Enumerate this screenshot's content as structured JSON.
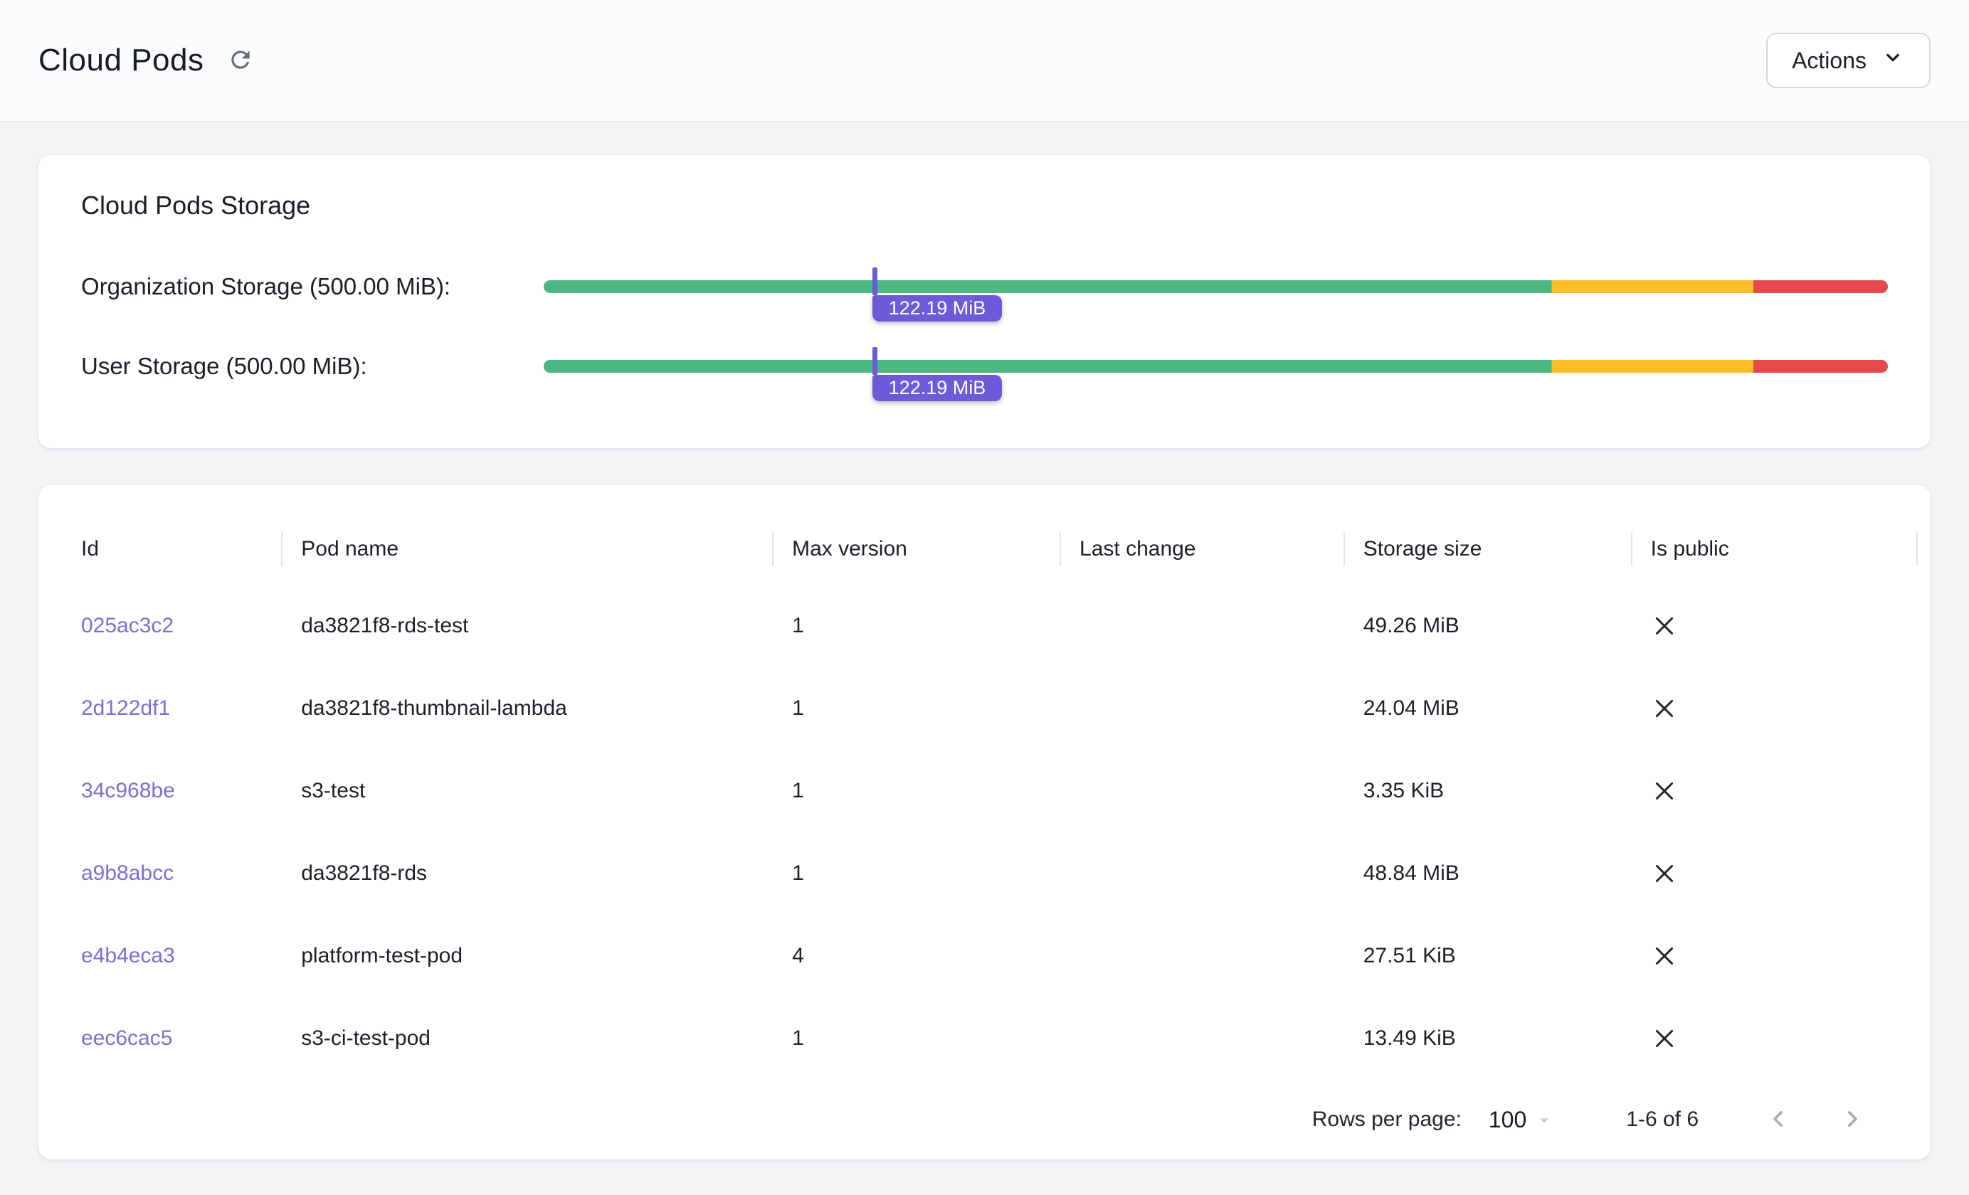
{
  "header": {
    "title": "Cloud Pods",
    "actions_label": "Actions"
  },
  "storage_card": {
    "title": "Cloud Pods Storage",
    "bars": [
      {
        "label": "Organization Storage (500.00 MiB):",
        "marker_label": "122.19 MiB",
        "marker_percent": 24.44
      },
      {
        "label": "User Storage (500.00 MiB):",
        "marker_label": "122.19 MiB",
        "marker_percent": 24.44
      }
    ],
    "thresholds": {
      "green_end_percent": 75,
      "yellow_end_percent": 90
    },
    "colors": {
      "green": "#4cb781",
      "yellow": "#fcbd2a",
      "red": "#e5494d",
      "marker": "#6c5bd9"
    }
  },
  "table": {
    "columns": [
      "Id",
      "Pod name",
      "Max version",
      "Last change",
      "Storage size",
      "Is public"
    ],
    "rows": [
      {
        "id": "025ac3c2",
        "pod_name": "da3821f8-rds-test",
        "max_version": "1",
        "last_change": "",
        "storage_size": "49.26 MiB",
        "is_public": false
      },
      {
        "id": "2d122df1",
        "pod_name": "da3821f8-thumbnail-lambda",
        "max_version": "1",
        "last_change": "",
        "storage_size": "24.04 MiB",
        "is_public": false
      },
      {
        "id": "34c968be",
        "pod_name": "s3-test",
        "max_version": "1",
        "last_change": "",
        "storage_size": "3.35 KiB",
        "is_public": false
      },
      {
        "id": "a9b8abcc",
        "pod_name": "da3821f8-rds",
        "max_version": "1",
        "last_change": "",
        "storage_size": "48.84 MiB",
        "is_public": false
      },
      {
        "id": "e4b4eca3",
        "pod_name": "platform-test-pod",
        "max_version": "4",
        "last_change": "",
        "storage_size": "27.51 KiB",
        "is_public": false
      },
      {
        "id": "eec6cac5",
        "pod_name": "s3-ci-test-pod",
        "max_version": "1",
        "last_change": "",
        "storage_size": "13.49 KiB",
        "is_public": false
      }
    ]
  },
  "pagination": {
    "rows_per_page_label": "Rows per page:",
    "rows_per_page_value": "100",
    "range_label": "1-6 of 6"
  }
}
